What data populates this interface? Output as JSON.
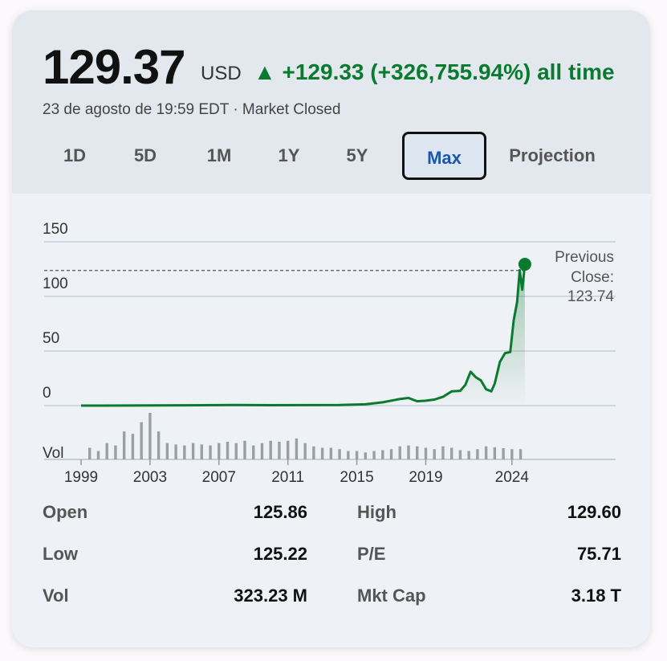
{
  "header": {
    "price": "129.37",
    "currency": "USD",
    "change_arrow": "▲",
    "change_text": "+129.33 (+326,755.94%) all time",
    "subtitle": "23 de agosto de 19:59 EDT · Market Closed",
    "change_color": "#0a7a2e"
  },
  "tabs": [
    {
      "label": "1D",
      "active": false
    },
    {
      "label": "5D",
      "active": false
    },
    {
      "label": "1M",
      "active": false
    },
    {
      "label": "1Y",
      "active": false
    },
    {
      "label": "5Y",
      "active": false
    },
    {
      "label": "Max",
      "active": true
    },
    {
      "label": "Projection",
      "active": false
    }
  ],
  "chart_data": {
    "type": "line",
    "line_color": "#0a7a2e",
    "ylim": [
      0,
      150
    ],
    "y_ticks": [
      0,
      50,
      100,
      150
    ],
    "x_ticks": [
      1999,
      2003,
      2007,
      2011,
      2015,
      2019,
      2024
    ],
    "xlim": [
      1999,
      2024.8
    ],
    "grid": true,
    "previous_close": {
      "label": "Previous Close:",
      "value": 123.74
    },
    "volume_label": "Vol",
    "series": [
      {
        "x": [
          1999.0,
          2002.0,
          2005.0,
          2008.0,
          2010.0,
          2014.0,
          2015.5,
          2016.5,
          2017.5,
          2018.0,
          2018.5,
          2019.0,
          2019.5,
          2020.0,
          2020.5,
          2021.0,
          2021.3,
          2021.6,
          2021.9,
          2022.2,
          2022.5,
          2022.8,
          2023.0,
          2023.3,
          2023.6,
          2023.9,
          2024.1,
          2024.3,
          2024.45,
          2024.6,
          2024.75
        ],
        "y": [
          0,
          0.1,
          0.3,
          0.6,
          0.4,
          0.5,
          1.2,
          3,
          6,
          7,
          4,
          4.5,
          5.5,
          8,
          13,
          13.5,
          19,
          31,
          26,
          23,
          15,
          13,
          20,
          40,
          48,
          49,
          78,
          95,
          124,
          106,
          129.37
        ]
      }
    ],
    "volume": [
      {
        "x": 1999.5,
        "h": 0.25
      },
      {
        "x": 2000.0,
        "h": 0.18
      },
      {
        "x": 2000.5,
        "h": 0.35
      },
      {
        "x": 2001.0,
        "h": 0.3
      },
      {
        "x": 2001.5,
        "h": 0.6
      },
      {
        "x": 2002.0,
        "h": 0.55
      },
      {
        "x": 2002.5,
        "h": 0.8
      },
      {
        "x": 2003.0,
        "h": 1.0
      },
      {
        "x": 2003.5,
        "h": 0.6
      },
      {
        "x": 2004.0,
        "h": 0.35
      },
      {
        "x": 2004.5,
        "h": 0.32
      },
      {
        "x": 2005.0,
        "h": 0.3
      },
      {
        "x": 2005.5,
        "h": 0.35
      },
      {
        "x": 2006.0,
        "h": 0.32
      },
      {
        "x": 2006.5,
        "h": 0.3
      },
      {
        "x": 2007.0,
        "h": 0.35
      },
      {
        "x": 2007.5,
        "h": 0.38
      },
      {
        "x": 2008.0,
        "h": 0.35
      },
      {
        "x": 2008.5,
        "h": 0.4
      },
      {
        "x": 2009.0,
        "h": 0.3
      },
      {
        "x": 2009.5,
        "h": 0.35
      },
      {
        "x": 2010.0,
        "h": 0.4
      },
      {
        "x": 2010.5,
        "h": 0.38
      },
      {
        "x": 2011.0,
        "h": 0.4
      },
      {
        "x": 2011.5,
        "h": 0.45
      },
      {
        "x": 2012.0,
        "h": 0.35
      },
      {
        "x": 2012.5,
        "h": 0.28
      },
      {
        "x": 2013.0,
        "h": 0.25
      },
      {
        "x": 2013.5,
        "h": 0.25
      },
      {
        "x": 2014.0,
        "h": 0.22
      },
      {
        "x": 2014.5,
        "h": 0.18
      },
      {
        "x": 2015.0,
        "h": 0.18
      },
      {
        "x": 2015.5,
        "h": 0.15
      },
      {
        "x": 2016.0,
        "h": 0.18
      },
      {
        "x": 2016.5,
        "h": 0.2
      },
      {
        "x": 2017.0,
        "h": 0.22
      },
      {
        "x": 2017.5,
        "h": 0.28
      },
      {
        "x": 2018.0,
        "h": 0.3
      },
      {
        "x": 2018.5,
        "h": 0.28
      },
      {
        "x": 2019.0,
        "h": 0.25
      },
      {
        "x": 2019.5,
        "h": 0.22
      },
      {
        "x": 2020.0,
        "h": 0.28
      },
      {
        "x": 2020.5,
        "h": 0.25
      },
      {
        "x": 2021.0,
        "h": 0.2
      },
      {
        "x": 2021.5,
        "h": 0.18
      },
      {
        "x": 2022.0,
        "h": 0.22
      },
      {
        "x": 2022.5,
        "h": 0.28
      },
      {
        "x": 2023.0,
        "h": 0.26
      },
      {
        "x": 2023.5,
        "h": 0.24
      },
      {
        "x": 2024.0,
        "h": 0.22
      },
      {
        "x": 2024.5,
        "h": 0.22
      }
    ]
  },
  "stats": [
    {
      "left_label": "Open",
      "left_value": "125.86",
      "right_label": "High",
      "right_value": "129.60"
    },
    {
      "left_label": "Low",
      "left_value": "125.22",
      "right_label": "P/E",
      "right_value": "75.71"
    },
    {
      "left_label": "Vol",
      "left_value": "323.23 M",
      "right_label": "Mkt Cap",
      "right_value": "3.18 T"
    }
  ]
}
